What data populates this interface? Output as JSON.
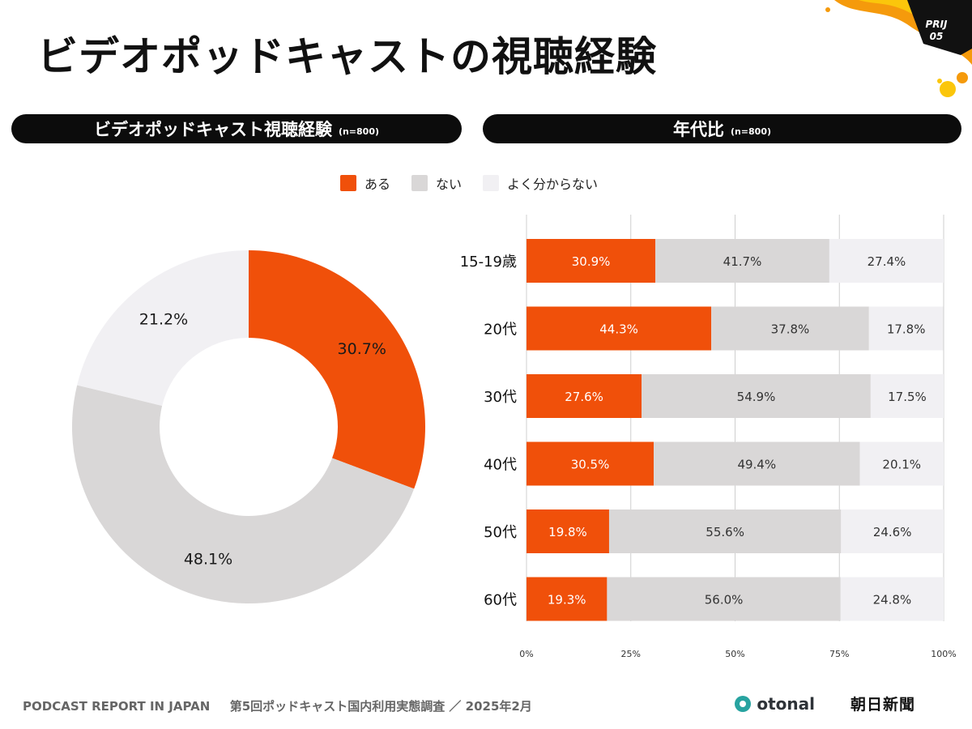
{
  "page": {
    "title": "ビデオポッドキャストの視聴経験",
    "badge_line1": "PRIJ",
    "badge_line2": "05"
  },
  "sections": {
    "left_title": "ビデオポッドキャスト視聴経験",
    "left_n": "(n=800)",
    "right_title": "年代比",
    "right_n": "(n=800)"
  },
  "legend": [
    {
      "label": "ある",
      "color": "#f0500a"
    },
    {
      "label": "ない",
      "color": "#d9d7d7"
    },
    {
      "label": "よく分からない",
      "color": "#f1f0f3"
    }
  ],
  "footer": {
    "report": "PODCAST REPORT IN JAPAN",
    "survey": "第5回ポッドキャスト国内利用実態調査 ／ 2025年2月",
    "otonal": "otonal",
    "asahi": "朝日新聞"
  },
  "chart_data": [
    {
      "type": "pie",
      "variant": "donut",
      "title": "ビデオポッドキャスト視聴経験",
      "labels": [
        "ある",
        "ない",
        "よく分からない"
      ],
      "values": [
        30.7,
        48.1,
        21.2
      ],
      "value_labels": [
        "30.7%",
        "48.1%",
        "21.2%"
      ],
      "colors": [
        "#f0500a",
        "#d9d7d7",
        "#f1f0f3"
      ]
    },
    {
      "type": "bar",
      "orientation": "horizontal",
      "stacked": true,
      "title": "年代比",
      "categories": [
        "15-19歳",
        "20代",
        "30代",
        "40代",
        "50代",
        "60代"
      ],
      "series": [
        {
          "name": "ある",
          "color": "#f0500a",
          "values": [
            30.9,
            44.3,
            27.6,
            30.5,
            19.8,
            19.3
          ]
        },
        {
          "name": "ない",
          "color": "#d9d7d7",
          "values": [
            41.7,
            37.8,
            54.9,
            49.4,
            55.6,
            56.0
          ]
        },
        {
          "name": "よく分からない",
          "color": "#f1f0f3",
          "values": [
            27.4,
            17.8,
            17.5,
            20.1,
            24.6,
            24.8
          ]
        }
      ],
      "xlim": [
        0,
        100
      ],
      "xticks": [
        "0%",
        "25%",
        "50%",
        "75%",
        "100%"
      ],
      "grid": true
    }
  ]
}
